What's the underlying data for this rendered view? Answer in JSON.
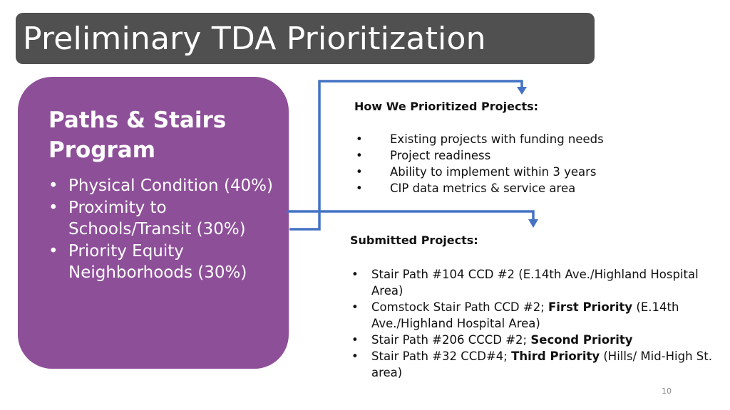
{
  "slide": {
    "title": "Preliminary TDA Prioritization",
    "page_number": "10"
  },
  "program": {
    "title": "Paths & Stairs Program",
    "criteria": [
      "Physical Condition (40%)",
      "Proximity to Schools/Transit (30%)",
      "Priority Equity Neighborhoods (30%)"
    ]
  },
  "prioritized": {
    "heading": "How We Prioritized Projects:",
    "items": [
      "Existing projects with funding needs",
      "Project readiness",
      "Ability to implement within 3 years",
      "CIP data metrics & service area"
    ]
  },
  "submitted": {
    "heading": "Submitted Projects:",
    "items": [
      {
        "pre": "Stair Path #104 CCD #2 (E.14th Ave./Highland Hospital Area)",
        "bold": "",
        "post": ""
      },
      {
        "pre": "Comstock Stair Path CCD #2; ",
        "bold": "First Priority",
        "post": " (E.14th Ave./Highland Hospital Area)"
      },
      {
        "pre": "Stair Path #206 CCCD #2; ",
        "bold": "Second Priority",
        "post": ""
      },
      {
        "pre": "Stair Path #32 CCD#4; ",
        "bold": "Third Priority",
        "post": " (Hills/ Mid-High St. area)"
      }
    ]
  },
  "bullet_glyph": "•",
  "colors": {
    "title_bar": "#505050",
    "program_box": "#8e4f99",
    "arrow": "#4472c4"
  },
  "icons": {
    "connector": "arrow-connector-icon"
  }
}
